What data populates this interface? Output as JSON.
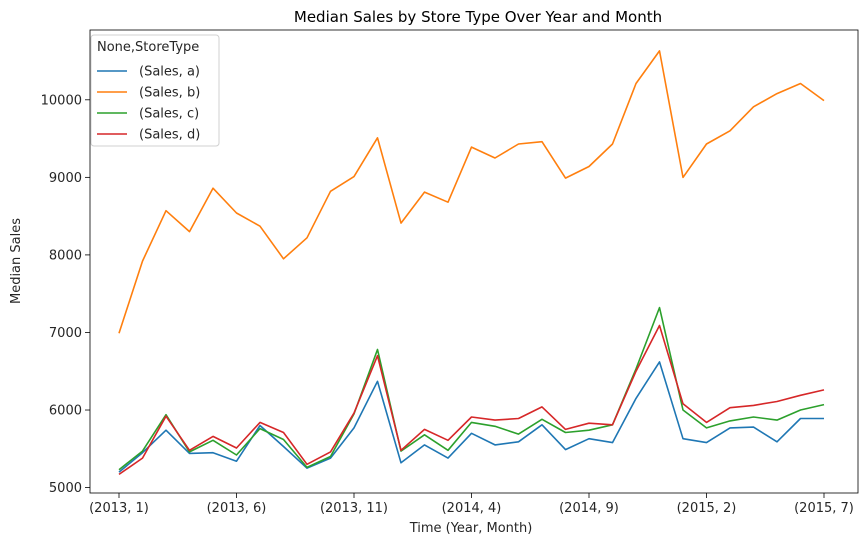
{
  "chart_data": {
    "type": "line",
    "title": "Median Sales by Store Type Over Year and Month",
    "xlabel": "Time (Year, Month)",
    "ylabel": "Median Sales",
    "x": [
      "(2013, 1)",
      "(2013, 2)",
      "(2013, 3)",
      "(2013, 4)",
      "(2013, 5)",
      "(2013, 6)",
      "(2013, 7)",
      "(2013, 8)",
      "(2013, 9)",
      "(2013, 10)",
      "(2013, 11)",
      "(2013, 12)",
      "(2014, 1)",
      "(2014, 2)",
      "(2014, 3)",
      "(2014, 4)",
      "(2014, 5)",
      "(2014, 6)",
      "(2014, 7)",
      "(2014, 8)",
      "(2014, 9)",
      "(2014, 10)",
      "(2014, 11)",
      "(2014, 12)",
      "(2015, 1)",
      "(2015, 2)",
      "(2015, 3)",
      "(2015, 4)",
      "(2015, 5)",
      "(2015, 6)",
      "(2015, 7)"
    ],
    "x_tick_labels": [
      "(2013, 1)",
      "(2013, 6)",
      "(2013, 11)",
      "(2014, 4)",
      "(2014, 9)",
      "(2015, 2)",
      "(2015, 7)"
    ],
    "x_tick_indices": [
      0,
      5,
      10,
      15,
      20,
      25,
      30
    ],
    "ylim": [
      4930,
      10900
    ],
    "y_ticks": [
      5000,
      6000,
      7000,
      8000,
      9000,
      10000
    ],
    "legend": {
      "title": "None,StoreType",
      "position": "upper-left"
    },
    "series": [
      {
        "name": "(Sales, a)",
        "color": "#1f77b4",
        "values": [
          5200,
          5450,
          5740,
          5440,
          5450,
          5340,
          5800,
          5530,
          5250,
          5380,
          5770,
          6370,
          5320,
          5550,
          5380,
          5700,
          5550,
          5590,
          5810,
          5490,
          5630,
          5580,
          6150,
          6620,
          5630,
          5580,
          5770,
          5780,
          5590,
          5890,
          5890
        ]
      },
      {
        "name": "(Sales, b)",
        "color": "#ff7f0e",
        "values": [
          6990,
          7920,
          8570,
          8300,
          8860,
          8540,
          8370,
          7950,
          8220,
          8820,
          9010,
          9510,
          8410,
          8810,
          8680,
          9390,
          9250,
          9430,
          9460,
          8990,
          9140,
          9430,
          10210,
          10630,
          9000,
          9430,
          9600,
          9910,
          10080,
          10210,
          9990
        ]
      },
      {
        "name": "(Sales, c)",
        "color": "#2ca02c",
        "values": [
          5230,
          5470,
          5940,
          5460,
          5610,
          5420,
          5760,
          5620,
          5260,
          5400,
          5950,
          6780,
          5470,
          5680,
          5480,
          5840,
          5790,
          5690,
          5880,
          5710,
          5740,
          5810,
          6530,
          7320,
          6000,
          5770,
          5860,
          5910,
          5870,
          6000,
          6070
        ]
      },
      {
        "name": "(Sales, d)",
        "color": "#d62728",
        "values": [
          5170,
          5380,
          5920,
          5480,
          5660,
          5510,
          5840,
          5710,
          5300,
          5460,
          5960,
          6700,
          5480,
          5750,
          5610,
          5910,
          5870,
          5890,
          6040,
          5750,
          5830,
          5810,
          6500,
          7090,
          6080,
          5840,
          6030,
          6060,
          6110,
          6190,
          6260
        ]
      }
    ]
  }
}
